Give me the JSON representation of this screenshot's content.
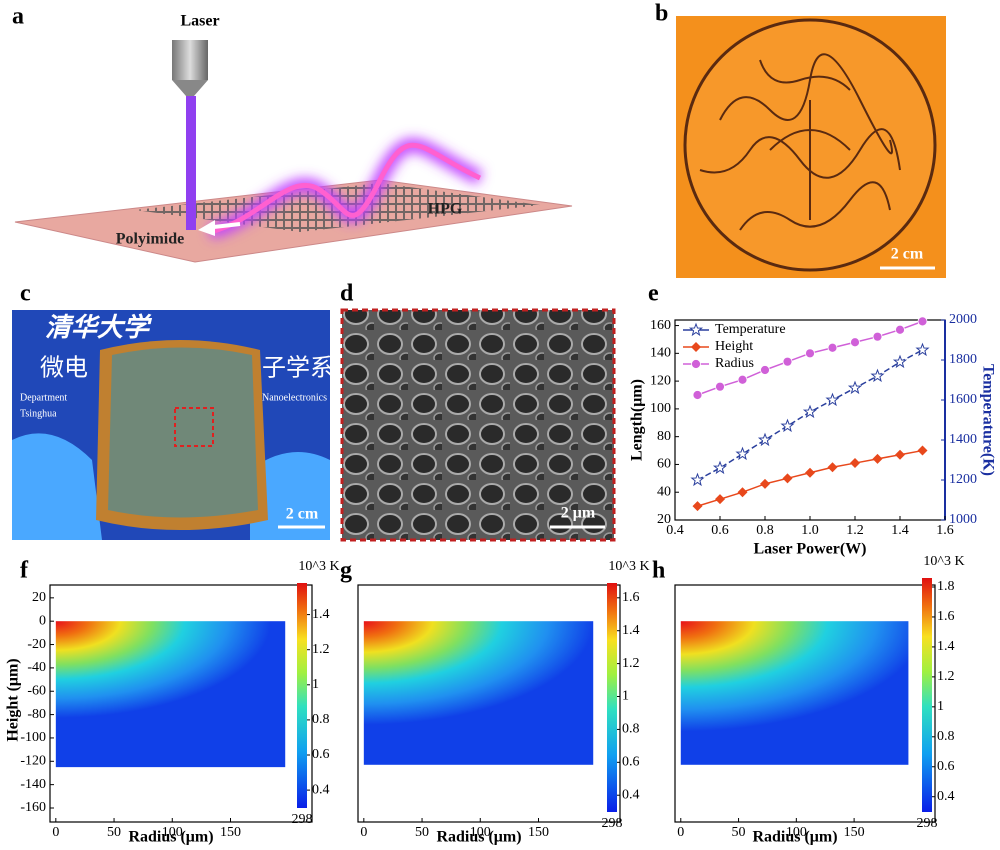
{
  "figure": {
    "panel_labels": [
      "a",
      "b",
      "c",
      "d",
      "e",
      "f",
      "g",
      "h"
    ],
    "a": {
      "laser": "Laser",
      "material": "HPG",
      "substrate": "Polyimide"
    },
    "b": {
      "scale_bar": "2 cm"
    },
    "c": {
      "sign_lines": [
        "清华大学",
        "微电",
        "子学系",
        "Department",
        "Tsinghua",
        "Nanoelectronics"
      ],
      "scale_bar": "2 cm"
    },
    "d": {
      "scale_bar": "2 μm"
    }
  },
  "chart_data": [
    {
      "type": "line",
      "xlabel": "Laser Power(W)",
      "ylabel": "Length(μm)",
      "y2label": "Temperature(K)",
      "y2color": "#1a2fa0",
      "x": [
        0.5,
        0.6,
        0.7,
        0.8,
        0.9,
        1.0,
        1.1,
        1.2,
        1.3,
        1.4,
        1.5
      ],
      "xlim": [
        0.4,
        1.6
      ],
      "xticks": [
        0.4,
        0.6,
        0.8,
        {
          "value": 1,
          "label": "1.0"
        },
        1.2,
        1.4,
        1.6
      ],
      "ylim": [
        20,
        164
      ],
      "yticks": [
        20,
        40,
        60,
        80,
        100,
        120,
        140,
        160
      ],
      "y2lim": [
        1000,
        2000
      ],
      "y2ticks": [
        1000,
        1200,
        1400,
        1600,
        1800,
        2000
      ],
      "legend": "upper left",
      "series": [
        {
          "name": "Temperature",
          "color": "#2a3f9d",
          "marker": "star",
          "dashed": true,
          "axis": "y2",
          "values": [
            1200,
            1260,
            1330,
            1400,
            1470,
            1540,
            1600,
            1660,
            1720,
            1790,
            1850
          ]
        },
        {
          "name": "Height",
          "color": "#e8481c",
          "marker": "diamond",
          "values": [
            30,
            35,
            40,
            46,
            50,
            54,
            58,
            61,
            64,
            67,
            70
          ]
        },
        {
          "name": "Radius",
          "color": "#d060d8",
          "marker": "circle",
          "values": [
            110,
            116,
            121,
            128,
            134,
            140,
            144,
            148,
            152,
            157,
            163
          ]
        }
      ]
    },
    {
      "type": "heatmap",
      "xlabel": "Radius (μm)",
      "ylabel": "Height (μm)",
      "xlim": [
        -5,
        220
      ],
      "xticks": [
        0,
        50,
        100,
        150
      ],
      "ylim": [
        -172,
        31
      ],
      "yticks": [
        20,
        0,
        -20,
        -40,
        -60,
        -80,
        -100,
        -120,
        -140,
        -160
      ],
      "field_xlim": [
        0,
        197
      ],
      "field_ylim": [
        -125,
        0
      ],
      "colorbar_label": "10^3 K",
      "clim": [
        0.298,
        1.58
      ],
      "cticks": [
        1.4,
        1.2,
        1,
        0.8,
        0.6,
        0.4,
        {
          "value": 0.298,
          "label": "298"
        }
      ]
    },
    {
      "type": "heatmap",
      "xlabel": "Radius (μm)",
      "xlim": [
        -5,
        220
      ],
      "xticks": [
        0,
        50,
        100,
        150
      ],
      "ylim": [
        -172,
        31
      ],
      "field_xlim": [
        0,
        197
      ],
      "field_ylim": [
        -123,
        0
      ],
      "colorbar_label": "10^3 K",
      "clim": [
        0.298,
        1.69
      ],
      "cticks": [
        1.6,
        1.4,
        1.2,
        1,
        0.8,
        0.6,
        0.4,
        {
          "value": 0.298,
          "label": "298"
        }
      ]
    },
    {
      "type": "heatmap",
      "xlabel": "Radius (μm)",
      "xlim": [
        -5,
        220
      ],
      "xticks": [
        0,
        50,
        100,
        150
      ],
      "ylim": [
        -172,
        31
      ],
      "field_xlim": [
        0,
        197
      ],
      "field_ylim": [
        -123,
        0
      ],
      "colorbar_label": "10^3 K",
      "clim": [
        0.298,
        1.86
      ],
      "cticks": [
        1.8,
        1.6,
        1.4,
        1.2,
        1,
        0.8,
        0.6,
        0.4,
        {
          "value": 0.298,
          "label": "298"
        }
      ]
    }
  ]
}
